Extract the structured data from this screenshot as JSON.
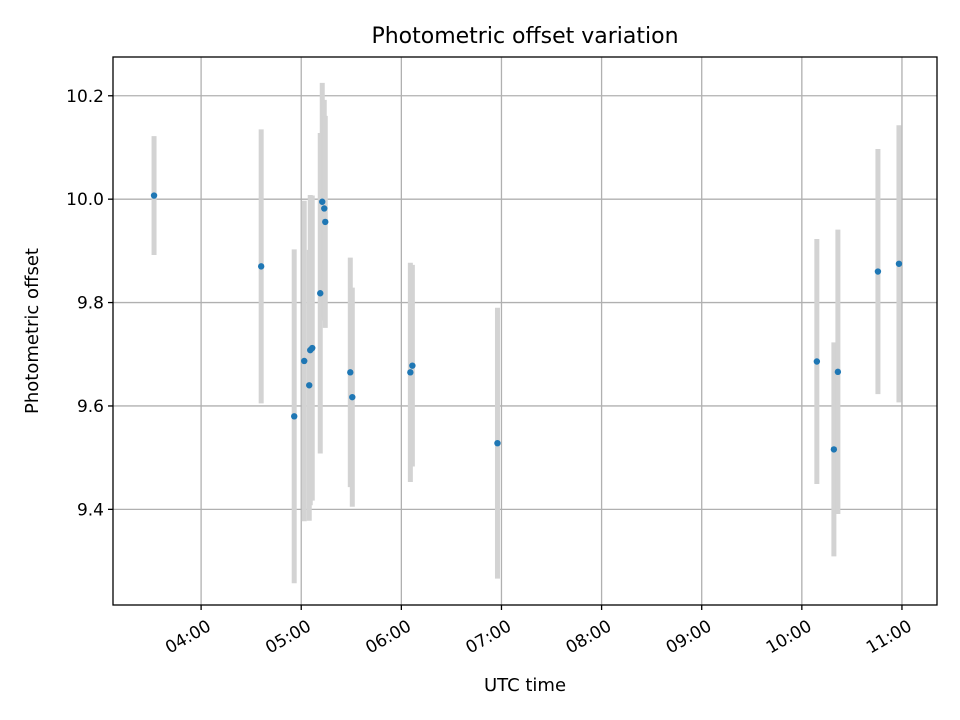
{
  "chart_data": {
    "type": "scatter",
    "title": "Photometric offset variation",
    "xlabel": "UTC time",
    "ylabel": "Photometric offset",
    "x_unit": "UTC time of day (hours)",
    "xlim": [
      3.12,
      11.35
    ],
    "ylim": [
      9.215,
      10.275
    ],
    "x_ticks": [
      4,
      5,
      6,
      7,
      8,
      9,
      10,
      11
    ],
    "x_tick_labels": [
      "04:00",
      "05:00",
      "06:00",
      "07:00",
      "08:00",
      "09:00",
      "10:00",
      "11:00"
    ],
    "y_ticks": [
      9.4,
      9.6,
      9.8,
      10.0,
      10.2
    ],
    "y_tick_labels": [
      "9.4",
      "9.6",
      "9.8",
      "10.0",
      "10.2"
    ],
    "grid": true,
    "series": [
      {
        "marker_color": "#1f77b4",
        "errorbar_color": "#d3d3d3",
        "points": [
          {
            "x": 3.53,
            "y": 10.007,
            "yerr": 0.115
          },
          {
            "x": 4.6,
            "y": 9.87,
            "yerr": 0.265
          },
          {
            "x": 4.93,
            "y": 9.58,
            "yerr": 0.323
          },
          {
            "x": 5.03,
            "y": 9.687,
            "yerr": 0.31
          },
          {
            "x": 5.08,
            "y": 9.64,
            "yerr": 0.262
          },
          {
            "x": 5.09,
            "y": 9.708,
            "yerr": 0.3
          },
          {
            "x": 5.11,
            "y": 9.712,
            "yerr": 0.295
          },
          {
            "x": 5.19,
            "y": 9.818,
            "yerr": 0.31
          },
          {
            "x": 5.21,
            "y": 9.995,
            "yerr": 0.23
          },
          {
            "x": 5.23,
            "y": 9.982,
            "yerr": 0.21
          },
          {
            "x": 5.24,
            "y": 9.956,
            "yerr": 0.205
          },
          {
            "x": 5.49,
            "y": 9.665,
            "yerr": 0.222
          },
          {
            "x": 5.51,
            "y": 9.617,
            "yerr": 0.212
          },
          {
            "x": 6.09,
            "y": 9.665,
            "yerr": 0.212
          },
          {
            "x": 6.11,
            "y": 9.678,
            "yerr": 0.195
          },
          {
            "x": 6.96,
            "y": 9.528,
            "yerr": 0.262
          },
          {
            "x": 10.15,
            "y": 9.686,
            "yerr": 0.237
          },
          {
            "x": 10.32,
            "y": 9.516,
            "yerr": 0.207
          },
          {
            "x": 10.36,
            "y": 9.666,
            "yerr": 0.275
          },
          {
            "x": 10.76,
            "y": 9.86,
            "yerr": 0.237
          },
          {
            "x": 10.97,
            "y": 9.875,
            "yerr": 0.268
          }
        ]
      }
    ]
  }
}
